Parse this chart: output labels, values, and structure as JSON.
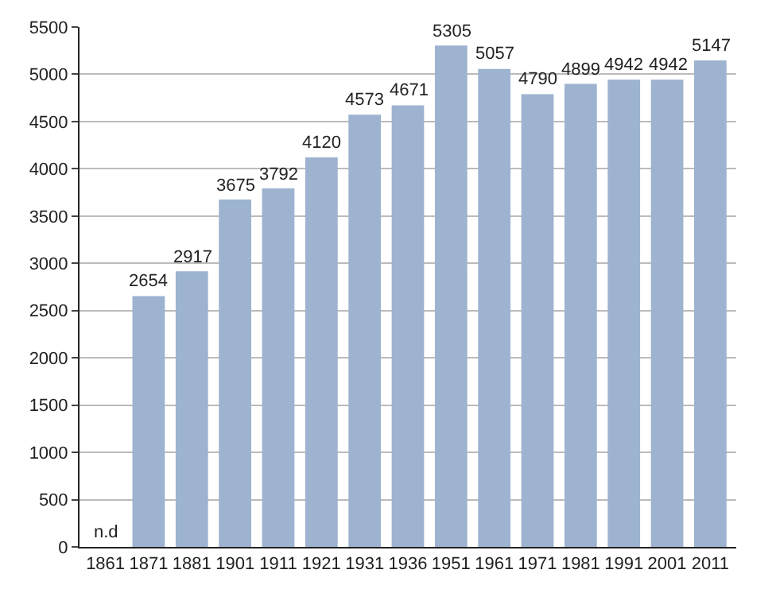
{
  "chart_data": {
    "type": "bar",
    "categories": [
      "1861",
      "1871",
      "1881",
      "1901",
      "1911",
      "1921",
      "1931",
      "1936",
      "1951",
      "1961",
      "1971",
      "1981",
      "1991",
      "2001",
      "2011"
    ],
    "values": [
      null,
      2654,
      2917,
      3675,
      3792,
      4120,
      4573,
      4671,
      5305,
      5057,
      4790,
      4899,
      4942,
      4942,
      5147
    ],
    "value_labels": [
      "n.d",
      "2654",
      "2917",
      "3675",
      "3792",
      "4120",
      "4573",
      "4671",
      "5305",
      "5057",
      "4790",
      "4899",
      "4942",
      "4942",
      "5147"
    ],
    "color": "#9db3cf",
    "ylim": [
      0,
      5500
    ],
    "yticks": [
      0,
      500,
      1000,
      1500,
      2000,
      2500,
      3000,
      3500,
      4000,
      4500,
      5000,
      5500
    ],
    "grid": "y"
  }
}
